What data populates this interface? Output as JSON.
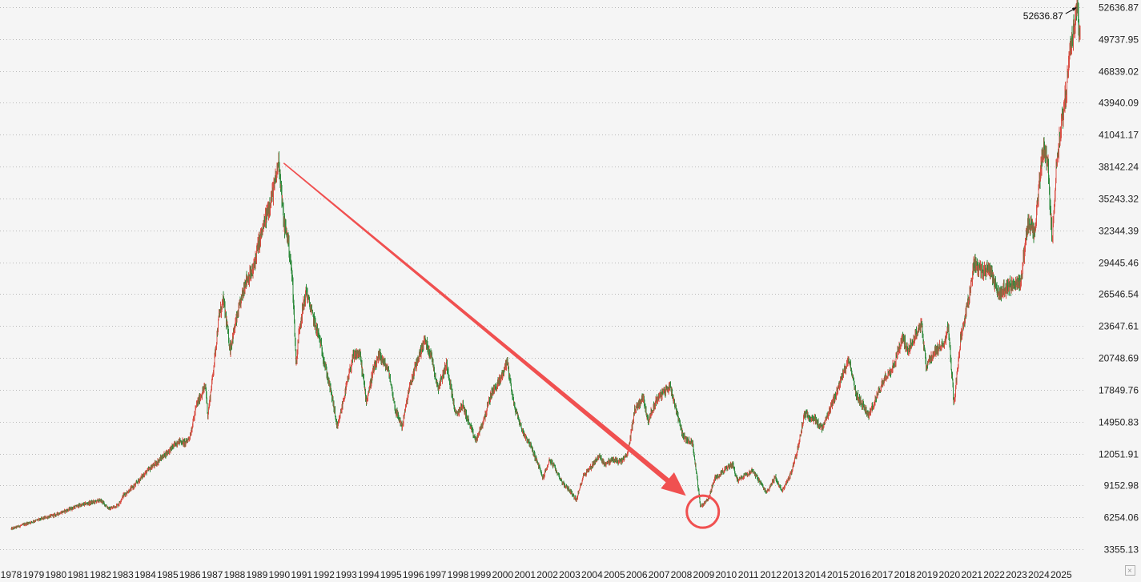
{
  "chart_data": {
    "type": "line",
    "style": "candlestick-like daily bars (red up / green down)",
    "title": "",
    "xlabel": "",
    "ylabel": "",
    "ylim": [
      3355.13,
      52636.87
    ],
    "grid": true,
    "y_axis_side": "right",
    "y_ticks": [
      "52636.87",
      "49737.95",
      "46839.02",
      "43940.09",
      "41041.17",
      "38142.24",
      "35243.32",
      "32344.39",
      "29445.46",
      "26546.54",
      "23647.61",
      "20748.69",
      "17849.76",
      "14950.83",
      "12051.91",
      "9152.98",
      "6254.06",
      "3355.13"
    ],
    "x_ticks": [
      "1978",
      "1979",
      "1980",
      "1981",
      "1982",
      "1983",
      "1984",
      "1985",
      "1986",
      "1987",
      "1988",
      "1989",
      "1990",
      "1991",
      "1992",
      "1993",
      "1994",
      "1995",
      "1996",
      "1997",
      "1998",
      "1999",
      "2000",
      "2001",
      "2002",
      "2003",
      "2004",
      "2005",
      "2006",
      "2007",
      "2008",
      "2009",
      "2010",
      "2011",
      "2012",
      "2013",
      "2014",
      "2015",
      "2016",
      "2017",
      "2018",
      "2019",
      "2020",
      "2021",
      "2022",
      "2023",
      "2024",
      "2025"
    ],
    "xlim": [
      1978.0,
      2025.9
    ],
    "series": [
      {
        "values": [
          [
            1978.0,
            5200
          ],
          [
            1979.0,
            5900
          ],
          [
            1980.0,
            6500
          ],
          [
            1981.0,
            7300
          ],
          [
            1982.0,
            7800
          ],
          [
            1982.4,
            7000
          ],
          [
            1982.8,
            7400
          ],
          [
            1983.0,
            8200
          ],
          [
            1983.5,
            9100
          ],
          [
            1984.0,
            10300
          ],
          [
            1984.5,
            11200
          ],
          [
            1985.0,
            12200
          ],
          [
            1985.5,
            13200
          ],
          [
            1985.8,
            13000
          ],
          [
            1986.0,
            13600
          ],
          [
            1986.3,
            16500
          ],
          [
            1986.7,
            18200
          ],
          [
            1986.8,
            15500
          ],
          [
            1987.0,
            18800
          ],
          [
            1987.3,
            24500
          ],
          [
            1987.5,
            26000
          ],
          [
            1987.8,
            21500
          ],
          [
            1988.0,
            23500
          ],
          [
            1988.5,
            27800
          ],
          [
            1988.8,
            28500
          ],
          [
            1989.0,
            30500
          ],
          [
            1989.4,
            33500
          ],
          [
            1989.8,
            36500
          ],
          [
            1989.98,
            38900
          ],
          [
            1990.2,
            33000
          ],
          [
            1990.4,
            31500
          ],
          [
            1990.6,
            27500
          ],
          [
            1990.75,
            20100
          ],
          [
            1990.9,
            23500
          ],
          [
            1991.2,
            26800
          ],
          [
            1991.5,
            24500
          ],
          [
            1991.8,
            22500
          ],
          [
            1992.0,
            20500
          ],
          [
            1992.4,
            16800
          ],
          [
            1992.6,
            14300
          ],
          [
            1992.9,
            17200
          ],
          [
            1993.3,
            20800
          ],
          [
            1993.6,
            21200
          ],
          [
            1993.9,
            16800
          ],
          [
            1994.2,
            19500
          ],
          [
            1994.5,
            21000
          ],
          [
            1994.9,
            19500
          ],
          [
            1995.2,
            16000
          ],
          [
            1995.5,
            14500
          ],
          [
            1995.8,
            17800
          ],
          [
            1996.1,
            20000
          ],
          [
            1996.5,
            22400
          ],
          [
            1996.8,
            21000
          ],
          [
            1997.1,
            18000
          ],
          [
            1997.5,
            20200
          ],
          [
            1997.9,
            15500
          ],
          [
            1998.2,
            16500
          ],
          [
            1998.6,
            14200
          ],
          [
            1998.8,
            13200
          ],
          [
            1999.1,
            14800
          ],
          [
            1999.5,
            17500
          ],
          [
            1999.9,
            18800
          ],
          [
            2000.2,
            20500
          ],
          [
            2000.5,
            16500
          ],
          [
            2000.9,
            14000
          ],
          [
            2001.2,
            13000
          ],
          [
            2001.6,
            11000
          ],
          [
            2001.8,
            9800
          ],
          [
            2002.1,
            11500
          ],
          [
            2002.4,
            10500
          ],
          [
            2002.7,
            9300
          ],
          [
            2003.0,
            8700
          ],
          [
            2003.3,
            7800
          ],
          [
            2003.6,
            10000
          ],
          [
            2003.9,
            10700
          ],
          [
            2004.3,
            11800
          ],
          [
            2004.6,
            11100
          ],
          [
            2004.9,
            11500
          ],
          [
            2005.3,
            11300
          ],
          [
            2005.6,
            12000
          ],
          [
            2005.9,
            16000
          ],
          [
            2006.3,
            17200
          ],
          [
            2006.5,
            15000
          ],
          [
            2006.9,
            17000
          ],
          [
            2007.3,
            17800
          ],
          [
            2007.5,
            18200
          ],
          [
            2007.8,
            15800
          ],
          [
            2008.1,
            13500
          ],
          [
            2008.5,
            13000
          ],
          [
            2008.75,
            9000
          ],
          [
            2008.85,
            7200
          ],
          [
            2009.2,
            7900
          ],
          [
            2009.5,
            9800
          ],
          [
            2009.9,
            10500
          ],
          [
            2010.3,
            11100
          ],
          [
            2010.5,
            9600
          ],
          [
            2010.9,
            10200
          ],
          [
            2011.2,
            10500
          ],
          [
            2011.5,
            9500
          ],
          [
            2011.8,
            8500
          ],
          [
            2012.2,
            9900
          ],
          [
            2012.5,
            8600
          ],
          [
            2012.9,
            10200
          ],
          [
            2013.2,
            12400
          ],
          [
            2013.5,
            15600
          ],
          [
            2013.9,
            15300
          ],
          [
            2014.3,
            14300
          ],
          [
            2014.6,
            15700
          ],
          [
            2014.9,
            17400
          ],
          [
            2015.3,
            19600
          ],
          [
            2015.5,
            20800
          ],
          [
            2015.8,
            17500
          ],
          [
            2016.1,
            16500
          ],
          [
            2016.4,
            15500
          ],
          [
            2016.8,
            17500
          ],
          [
            2017.1,
            19000
          ],
          [
            2017.5,
            20000
          ],
          [
            2017.9,
            22700
          ],
          [
            2018.1,
            21500
          ],
          [
            2018.4,
            22400
          ],
          [
            2018.75,
            24000
          ],
          [
            2018.95,
            20000
          ],
          [
            2019.3,
            21200
          ],
          [
            2019.7,
            21900
          ],
          [
            2019.95,
            23600
          ],
          [
            2020.2,
            16500
          ],
          [
            2020.5,
            22500
          ],
          [
            2020.9,
            26500
          ],
          [
            2021.1,
            29500
          ],
          [
            2021.5,
            28500
          ],
          [
            2021.8,
            29000
          ],
          [
            2022.2,
            26500
          ],
          [
            2022.5,
            27000
          ],
          [
            2022.9,
            27500
          ],
          [
            2023.2,
            27800
          ],
          [
            2023.5,
            33000
          ],
          [
            2023.8,
            32000
          ],
          [
            2024.0,
            36000
          ],
          [
            2024.2,
            40000
          ],
          [
            2024.4,
            38500
          ],
          [
            2024.6,
            31500
          ],
          [
            2024.8,
            38500
          ],
          [
            2025.0,
            42000
          ],
          [
            2025.2,
            44500
          ],
          [
            2025.4,
            48500
          ],
          [
            2025.55,
            50500
          ],
          [
            2025.7,
            52636.87
          ],
          [
            2025.85,
            49800
          ]
        ]
      }
    ],
    "annotations": [
      {
        "type": "label",
        "text": "52636.87",
        "x": 2025.7,
        "y": 52636.87
      },
      {
        "type": "arrow",
        "from": [
          1989.98,
          38900
        ],
        "to": [
          2008.85,
          7200
        ],
        "color": "#f05050"
      },
      {
        "type": "circle",
        "x": 2008.85,
        "y": 7200,
        "color": "#f05050"
      }
    ],
    "colors": {
      "up": "#d94f45",
      "down": "#2e8b3d",
      "annotation": "#f05050",
      "grid": "#b9b9b9",
      "background": "#f5f5f5"
    }
  }
}
